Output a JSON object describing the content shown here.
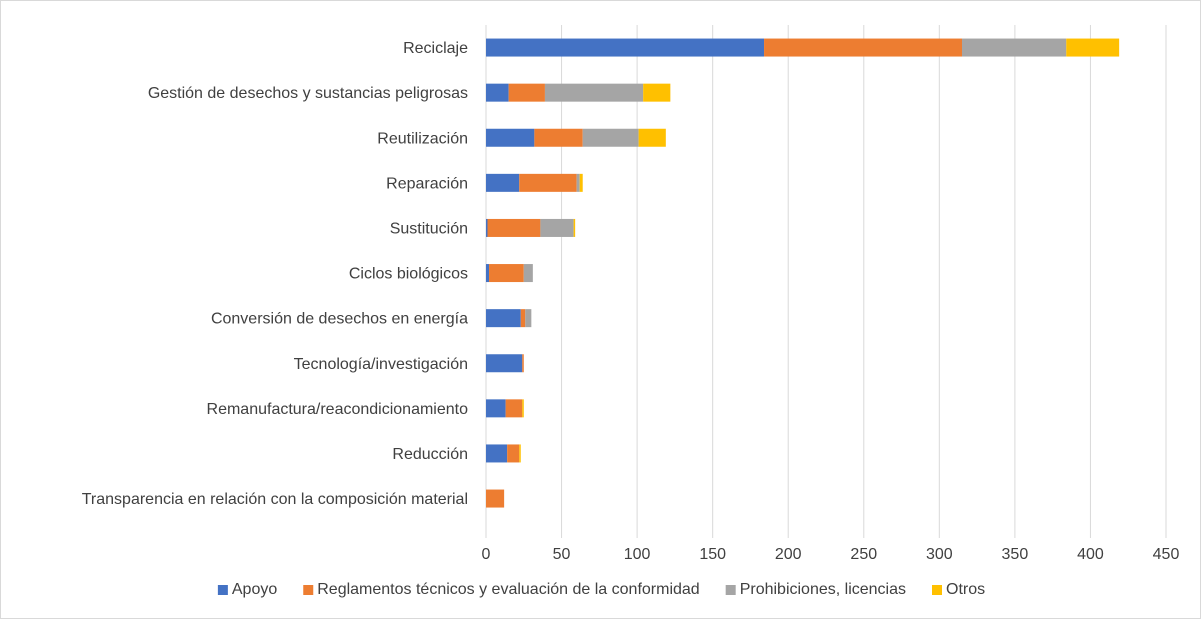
{
  "chart_data": {
    "type": "bar",
    "orientation": "horizontal",
    "stacked": true,
    "title": "",
    "xlabel": "",
    "ylabel": "",
    "categories": [
      "Reciclaje",
      "Gestión de desechos y sustancias peligrosas",
      "Reutilización",
      "Reparación",
      "Sustitución",
      "Ciclos biológicos",
      "Conversión de desechos en energía",
      "Tecnología/investigación",
      "Remanufactura/reacondicionamiento",
      "Reducción",
      "Transparencia en relación con la composición material"
    ],
    "series": [
      {
        "name": "Apoyo",
        "color": "#4472c4",
        "values": [
          184,
          15,
          32,
          22,
          1,
          2,
          23,
          24,
          13,
          14,
          0
        ]
      },
      {
        "name": "Reglamentos técnicos y evaluación de la conformidad",
        "color": "#ed7d31",
        "values": [
          131,
          24,
          32,
          38,
          35,
          23,
          3,
          1,
          11,
          8,
          12
        ]
      },
      {
        "name": "Prohibiciones, licencias",
        "color": "#a5a5a5",
        "values": [
          69,
          65,
          37,
          2,
          22,
          6,
          4,
          0,
          0,
          0,
          0
        ]
      },
      {
        "name": "Otros",
        "color": "#ffc000",
        "values": [
          35,
          18,
          18,
          2,
          1,
          0,
          0,
          0,
          1,
          1,
          0
        ]
      }
    ],
    "xlim": [
      0,
      450
    ],
    "xticks": [
      0,
      50,
      100,
      150,
      200,
      250,
      300,
      350,
      400,
      450
    ],
    "grid": "vertical",
    "legend_position": "bottom"
  }
}
